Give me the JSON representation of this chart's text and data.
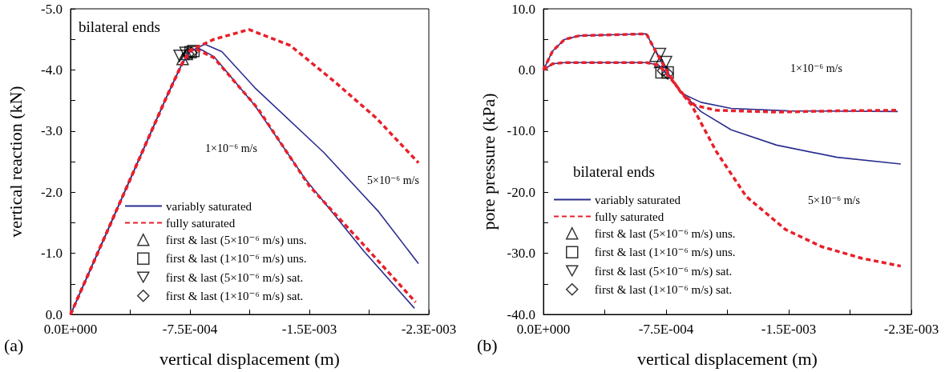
{
  "chart_data": [
    {
      "type": "line",
      "xlabel": "vertical displacement (m)",
      "ylabel": "vertical reaction (kN)",
      "xlim": [
        0,
        -0.00225
      ],
      "ylim": [
        0,
        -5
      ],
      "xticks": [
        {
          "value": 0,
          "label": "0.0E+000"
        },
        {
          "value": -0.000375,
          "label": null
        },
        {
          "value": -0.00075,
          "label": "-7.5E-004"
        },
        {
          "value": -0.001125,
          "label": null
        },
        {
          "value": -0.0015,
          "label": "-1.5E-003"
        },
        {
          "value": -0.001875,
          "label": null
        },
        {
          "value": -0.00225,
          "label": "-2.3E-003"
        }
      ],
      "yticks": [
        {
          "value": 0,
          "label": "0.0"
        },
        {
          "value": -0.5,
          "label": null
        },
        {
          "value": -1,
          "label": "-1.0"
        },
        {
          "value": -1.5,
          "label": null
        },
        {
          "value": -2,
          "label": "-2.0"
        },
        {
          "value": -2.5,
          "label": null
        },
        {
          "value": -3,
          "label": "-3.0"
        },
        {
          "value": -3.5,
          "label": null
        },
        {
          "value": -4,
          "label": "-4.0"
        },
        {
          "value": -4.5,
          "label": null
        },
        {
          "value": -5,
          "label": "-5.0"
        }
      ],
      "grid": false,
      "legend": "bottom left",
      "annotations": [
        "(a)",
        "bilateral ends",
        "1×10⁻⁶ m/s",
        "5×10⁻⁶ m/s"
      ],
      "series": [
        {
          "name": "variably saturated",
          "color": "#2b2f8f",
          "line_style": "solid",
          "marker": "none",
          "x": [
            0,
            -0.0002,
            -0.0004,
            -0.0006,
            -0.0007,
            -0.00075,
            -0.0008,
            -0.0009,
            -0.001157,
            -0.00147,
            -0.00184,
            -0.00216
          ],
          "values": [
            0,
            -1.18,
            -2.36,
            -3.54,
            -4.1,
            -4.3,
            -4.36,
            -4.22,
            -3.42,
            -2.23,
            -1.04,
            -0.1
          ]
        },
        {
          "color": "#2b2f8f",
          "line_style": "solid",
          "marker": "none",
          "x": [
            0,
            -0.0002,
            -0.0004,
            -0.0006,
            -0.0007,
            -0.00075,
            -0.000843,
            -0.00095,
            -0.001157,
            -0.00159,
            -0.001935,
            -0.002185
          ],
          "values": [
            0,
            -1.18,
            -2.36,
            -3.54,
            -4.1,
            -4.3,
            -4.42,
            -4.3,
            -3.71,
            -2.65,
            -1.68,
            -0.83
          ]
        },
        {
          "name": "fully saturated",
          "color": "#e8202a",
          "line_style": "dashed",
          "marker": "none",
          "x": [
            0,
            -0.0002,
            -0.0004,
            -0.0006,
            -0.0007,
            -0.00075,
            -0.00078,
            -0.0009,
            -0.001176,
            -0.0015,
            -0.00184,
            -0.002167
          ],
          "values": [
            0,
            -1.18,
            -2.36,
            -3.54,
            -4.1,
            -4.3,
            -4.35,
            -4.2,
            -3.37,
            -2.1,
            -1.14,
            -0.2
          ]
        },
        {
          "color": "#e8202a",
          "line_style": "dashed",
          "marker": "none",
          "x": [
            0,
            -0.0002,
            -0.0004,
            -0.0006,
            -0.0007,
            -0.00075,
            -0.0009,
            -0.00112,
            -0.00138,
            -0.001657,
            -0.001917,
            -0.002185
          ],
          "values": [
            0,
            -1.18,
            -2.36,
            -3.54,
            -4.1,
            -4.32,
            -4.5,
            -4.66,
            -4.4,
            -3.81,
            -3.22,
            -2.48
          ]
        },
        {
          "type": "scatter",
          "name": "first & last (5×10⁻⁶ m/s) uns.",
          "color": "#000000",
          "marker": "triangle",
          "x": [
            -0.000704,
            -0.000731
          ],
          "values": [
            -4.18,
            -4.26
          ]
        },
        {
          "type": "scatter",
          "name": "first & last (1×10⁻⁶ m/s) uns.",
          "color": "#000000",
          "marker": "square",
          "x": [
            -0.000754,
            -0.000772
          ],
          "values": [
            -4.29,
            -4.31
          ]
        },
        {
          "type": "scatter",
          "name": "first & last (5×10⁻⁶ m/s) sat.",
          "color": "#000000",
          "marker": "triangle-down",
          "x": [
            -0.000685,
            -0.000722
          ],
          "values": [
            -4.23,
            -4.28
          ]
        },
        {
          "type": "scatter",
          "name": "first & last (1×10⁻⁶ m/s) sat.",
          "color": "#000000",
          "marker": "diamond",
          "x": [
            -0.00074,
            -0.00076
          ],
          "values": [
            -4.26,
            -4.28
          ]
        }
      ]
    },
    {
      "type": "line",
      "xlabel": "vertical displacement (m)",
      "ylabel": "pore pressure (kPa)",
      "xlim": [
        0,
        -0.00225
      ],
      "ylim": [
        -40,
        10
      ],
      "xticks": [
        {
          "value": 0,
          "label": "0.0E+000"
        },
        {
          "value": -0.000375,
          "label": null
        },
        {
          "value": -0.00075,
          "label": "-7.5E-004"
        },
        {
          "value": -0.001125,
          "label": null
        },
        {
          "value": -0.0015,
          "label": "-1.5E-003"
        },
        {
          "value": -0.001875,
          "label": null
        },
        {
          "value": -0.00225,
          "label": "-2.3E-003"
        }
      ],
      "yticks": [
        {
          "value": 10,
          "label": "10.0"
        },
        {
          "value": 5,
          "label": null
        },
        {
          "value": 0,
          "label": "0.0"
        },
        {
          "value": -5,
          "label": null
        },
        {
          "value": -10,
          "label": "-10.0"
        },
        {
          "value": -15,
          "label": null
        },
        {
          "value": -20,
          "label": "-20.0"
        },
        {
          "value": -25,
          "label": null
        },
        {
          "value": -30,
          "label": "-30.0"
        },
        {
          "value": -35,
          "label": null
        },
        {
          "value": -40,
          "label": "-40.0"
        }
      ],
      "grid": false,
      "legend": "bottom left",
      "annotations": [
        "(b)",
        "bilateral ends",
        "1×10⁻⁶ m/s",
        "5×10⁻⁶ m/s"
      ],
      "series": [
        {
          "name": "variably saturated",
          "color": "#2b2f8f",
          "line_style": "solid",
          "marker": "none",
          "x": [
            0,
            -5.6e-05,
            -0.00013,
            -0.00022,
            -0.00063,
            -0.000685,
            -0.00076,
            -0.000833,
            -0.000963,
            -0.001148,
            -0.001426,
            -0.001796,
            -0.002185
          ],
          "values": [
            0,
            3.1,
            5,
            5.6,
            5.9,
            3.1,
            -0.4,
            -3.4,
            -6.8,
            -9.8,
            -12.3,
            -14.3,
            -15.4
          ]
        },
        {
          "color": "#2b2f8f",
          "line_style": "solid",
          "marker": "none",
          "x": [
            0,
            -5.6e-05,
            -0.00013,
            -0.00063,
            -0.000704,
            -0.000778,
            -0.000852,
            -0.000963,
            -0.001148,
            -0.0015,
            -0.002167
          ],
          "values": [
            0,
            1,
            1.2,
            1.2,
            0.8,
            -1.4,
            -3.9,
            -5.3,
            -6.3,
            -6.7,
            -6.8
          ]
        },
        {
          "name": "fully saturated",
          "color": "#e8202a",
          "line_style": "dashed",
          "marker": "none",
          "x": [
            0,
            -5.6e-05,
            -0.00013,
            -0.00022,
            -0.00063,
            -0.000685,
            -0.00076,
            -0.000833,
            -0.000907,
            -0.001056,
            -0.00124,
            -0.00148,
            -0.0017,
            -0.001944,
            -0.002185
          ],
          "values": [
            0,
            3.1,
            5,
            5.6,
            5.9,
            3.1,
            -0.4,
            -3.4,
            -5.8,
            -13.3,
            -20.7,
            -26.1,
            -28.9,
            -30.8,
            -32.1
          ]
        },
        {
          "color": "#e8202a",
          "line_style": "dashed",
          "marker": "none",
          "x": [
            0,
            -5.6e-05,
            -0.00013,
            -0.00063,
            -0.000704,
            -0.000778,
            -0.000852,
            -0.000926,
            -0.001056,
            -0.001426,
            -0.001796,
            -0.002167
          ],
          "values": [
            0,
            1,
            1.2,
            1.2,
            0.8,
            -1.4,
            -3.9,
            -5.8,
            -6.6,
            -6.9,
            -6.7,
            -6.6
          ]
        },
        {
          "type": "scatter",
          "name": "first & last (5×10⁻⁶ m/s) uns.",
          "color": "#000000",
          "marker": "triangle",
          "x": [
            -0.000685,
            -0.000713
          ],
          "values": [
            2.3,
            1.3
          ]
        },
        {
          "type": "scatter",
          "name": "first & last (1×10⁻⁶ m/s) uns.",
          "color": "#000000",
          "marker": "square",
          "x": [
            -0.000722,
            -0.00076
          ],
          "values": [
            -0.4,
            -0.4
          ]
        },
        {
          "type": "scatter",
          "name": "first & last (5×10⁻⁶ m/s) sat.",
          "color": "#000000",
          "marker": "triangle-down",
          "x": [
            -0.000713,
            -0.00075
          ],
          "values": [
            2.6,
            1.3
          ]
        },
        {
          "type": "scatter",
          "name": "first & last (1×10⁻⁶ m/s) sat.",
          "color": "#000000",
          "marker": "diamond",
          "x": [
            -0.000731,
            -0.00076
          ],
          "values": [
            -0.1,
            -0.6
          ]
        }
      ]
    }
  ]
}
